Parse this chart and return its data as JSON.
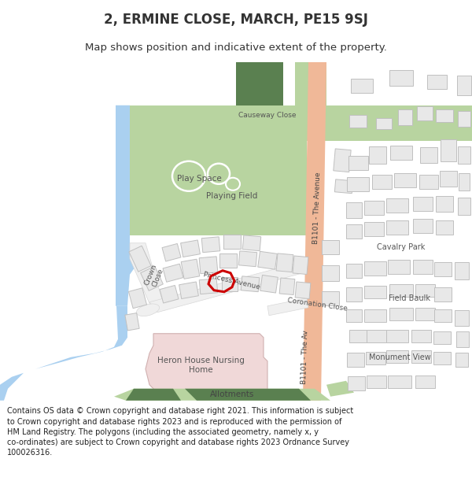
{
  "title": "2, ERMINE CLOSE, MARCH, PE15 9SJ",
  "subtitle": "Map shows position and indicative extent of the property.",
  "footer": "Contains OS data © Crown copyright and database right 2021. This information is subject\nto Crown copyright and database rights 2023 and is reproduced with the permission of\nHM Land Registry. The polygons (including the associated geometry, namely x, y\nco-ordinates) are subject to Crown copyright and database rights 2023 Ordnance Survey\n100026316.",
  "bg_color": "#ffffff",
  "green_light": "#b8d4a0",
  "green_dark": "#5a8050",
  "blue_water": "#aad0f0",
  "orange_road": "#f0b898",
  "red_highlight": "#cc0000",
  "building_fill": "#e8e8e8",
  "building_edge": "#c0c0c0",
  "road_fill": "#f0f0f0",
  "pink_fill": "#f0d8d8",
  "pink_edge": "#d0b0b0",
  "text_dark": "#333333",
  "text_gray": "#666666"
}
